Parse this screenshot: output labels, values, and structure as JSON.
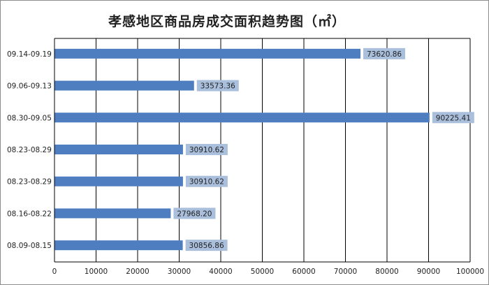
{
  "chart_data": {
    "type": "bar",
    "orientation": "horizontal",
    "title": "孝感地区商品房成交面积趋势图（㎡）",
    "categories": [
      "09.14-09.19",
      "09.06-09.13",
      "08.30-09.05",
      "08.23-08.29",
      "08.23-08.29",
      "08.16-08.22",
      "08.09-08.15"
    ],
    "values": [
      73620.86,
      33573.36,
      90225.41,
      30910.62,
      30910.62,
      27968.2,
      30856.86
    ],
    "value_labels": [
      "73620.86",
      "33573.36",
      "90225.41",
      "30910.62",
      "30910.62",
      "27968.20",
      "30856.86"
    ],
    "xlim": [
      0,
      100000
    ],
    "ticks": [
      "0",
      "10000",
      "20000",
      "30000",
      "40000",
      "50000",
      "60000",
      "70000",
      "80000",
      "90000",
      "100000"
    ],
    "grid": true,
    "legend": "none",
    "colors": {
      "bar": "#4f7ec0",
      "label_bg": "#a9bfdc",
      "grid": "#000000"
    }
  }
}
